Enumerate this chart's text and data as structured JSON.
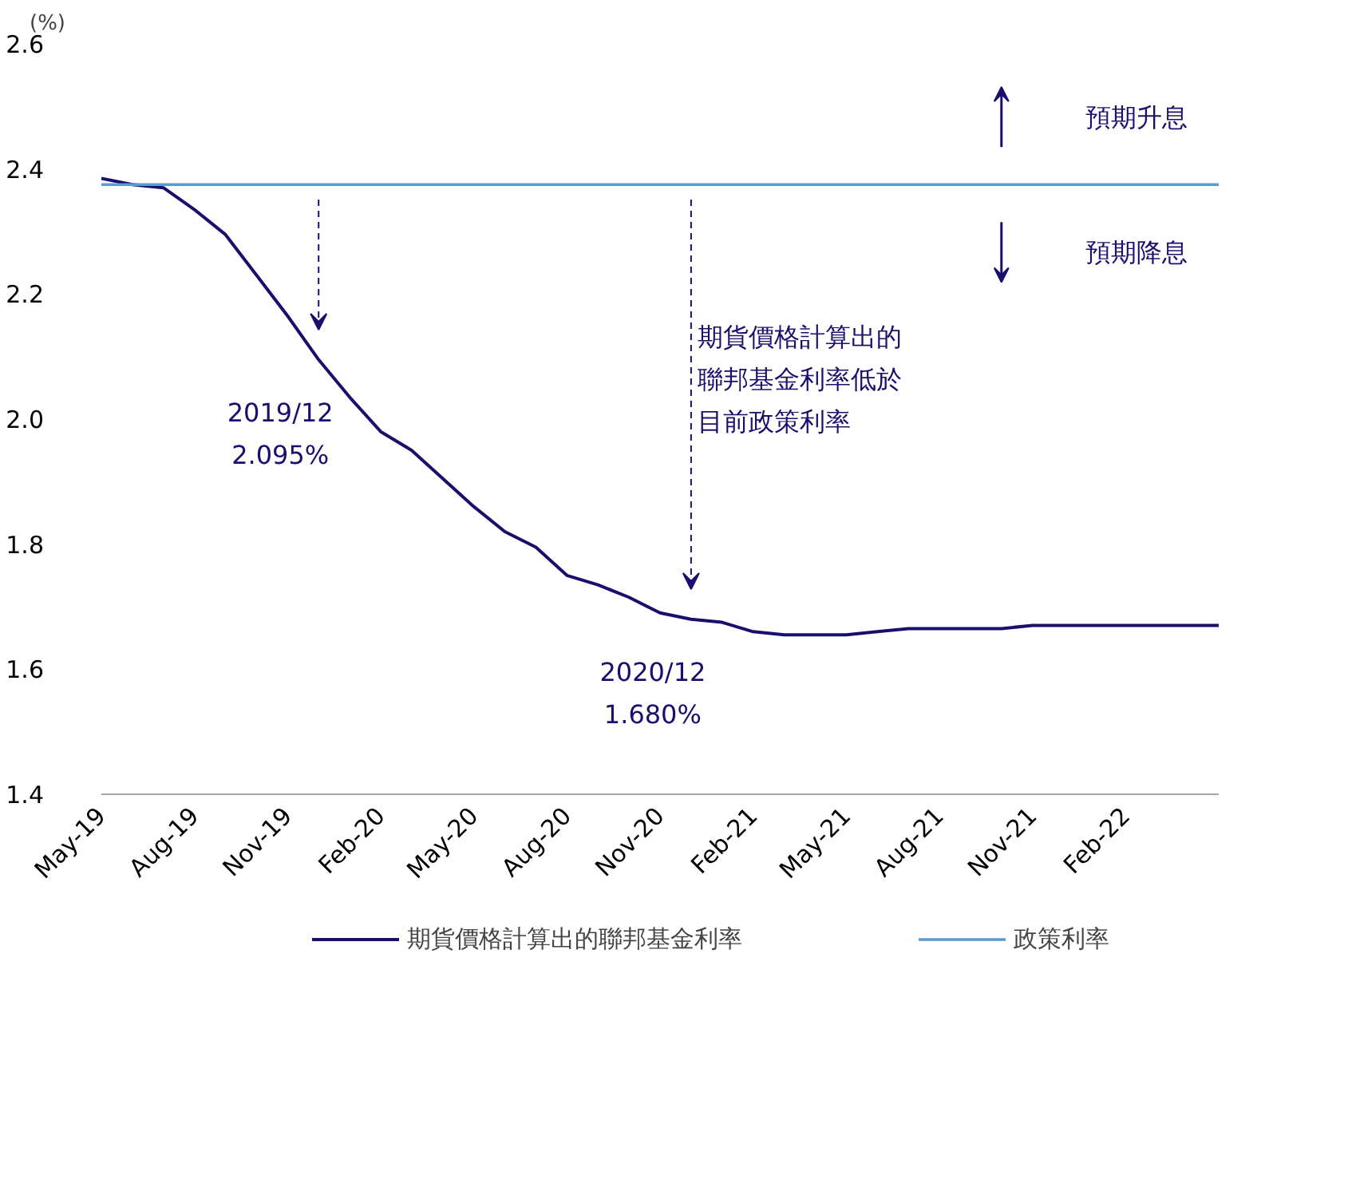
{
  "chart_data": {
    "type": "line",
    "ylabel": "(%)",
    "x": [
      "2019-05",
      "2019-06",
      "2019-07",
      "2019-08",
      "2019-09",
      "2019-10",
      "2019-11",
      "2019-12",
      "2020-01",
      "2020-02",
      "2020-03",
      "2020-04",
      "2020-05",
      "2020-06",
      "2020-07",
      "2020-08",
      "2020-09",
      "2020-10",
      "2020-11",
      "2020-12",
      "2021-01",
      "2021-02",
      "2021-03",
      "2021-04",
      "2021-05",
      "2021-06",
      "2021-07",
      "2021-08",
      "2021-09",
      "2021-10",
      "2021-11",
      "2021-12",
      "2022-01",
      "2022-02",
      "2022-03",
      "2022-04",
      "2022-05"
    ],
    "series": [
      {
        "name": "期貨價格計算出的聯邦基金利率",
        "color": "#1b0f6e",
        "values": [
          2.385,
          2.375,
          2.37,
          2.335,
          2.295,
          2.23,
          2.165,
          2.095,
          2.035,
          1.98,
          1.95,
          1.905,
          1.86,
          1.82,
          1.795,
          1.75,
          1.735,
          1.715,
          1.69,
          1.68,
          1.675,
          1.66,
          1.655,
          1.655,
          1.655,
          1.66,
          1.665,
          1.665,
          1.665,
          1.665,
          1.67,
          1.67,
          1.67,
          1.67,
          1.67,
          1.67,
          1.67
        ]
      },
      {
        "name": "政策利率",
        "color": "#5b9bd5",
        "values": [
          2.375,
          2.375,
          2.375,
          2.375,
          2.375,
          2.375,
          2.375,
          2.375,
          2.375,
          2.375,
          2.375,
          2.375,
          2.375,
          2.375,
          2.375,
          2.375,
          2.375,
          2.375,
          2.375,
          2.375,
          2.375,
          2.375,
          2.375,
          2.375,
          2.375,
          2.375,
          2.375,
          2.375,
          2.375,
          2.375,
          2.375,
          2.375,
          2.375,
          2.375,
          2.375,
          2.375,
          2.375
        ]
      }
    ],
    "xlim": [
      "2019-05",
      "2022-05"
    ],
    "ylim": [
      1.4,
      2.6
    ],
    "yticks": [
      1.4,
      1.6,
      1.8,
      {
        "value": 2.0,
        "label": "2.0"
      },
      2.2,
      2.4,
      2.6
    ],
    "xticks": [
      {
        "value": "2019-05",
        "label": "May-19"
      },
      {
        "value": "2019-08",
        "label": "Aug-19"
      },
      {
        "value": "2019-11",
        "label": "Nov-19"
      },
      {
        "value": "2020-02",
        "label": "Feb-20"
      },
      {
        "value": "2020-05",
        "label": "May-20"
      },
      {
        "value": "2020-08",
        "label": "Aug-20"
      },
      {
        "value": "2020-11",
        "label": "Nov-20"
      },
      {
        "value": "2021-02",
        "label": "Feb-21"
      },
      {
        "value": "2021-05",
        "label": "May-21"
      },
      {
        "value": "2021-08",
        "label": "Aug-21"
      },
      {
        "value": "2021-11",
        "label": "Nov-21"
      },
      {
        "value": "2022-02",
        "label": "Feb-22"
      }
    ],
    "annotations": [
      {
        "text": "2019/12\n2.095%",
        "x": "2019-12",
        "y": 2.095
      },
      {
        "text": "2020/12\n1.680%",
        "x": "2020-12",
        "y": 1.68
      },
      "期貨價格計算出的聯邦基金利率低於目前政策利率",
      "預期升息",
      "預期降息"
    ],
    "grid": false,
    "legend": "bottom",
    "line_style": "solid",
    "marker": "none"
  }
}
